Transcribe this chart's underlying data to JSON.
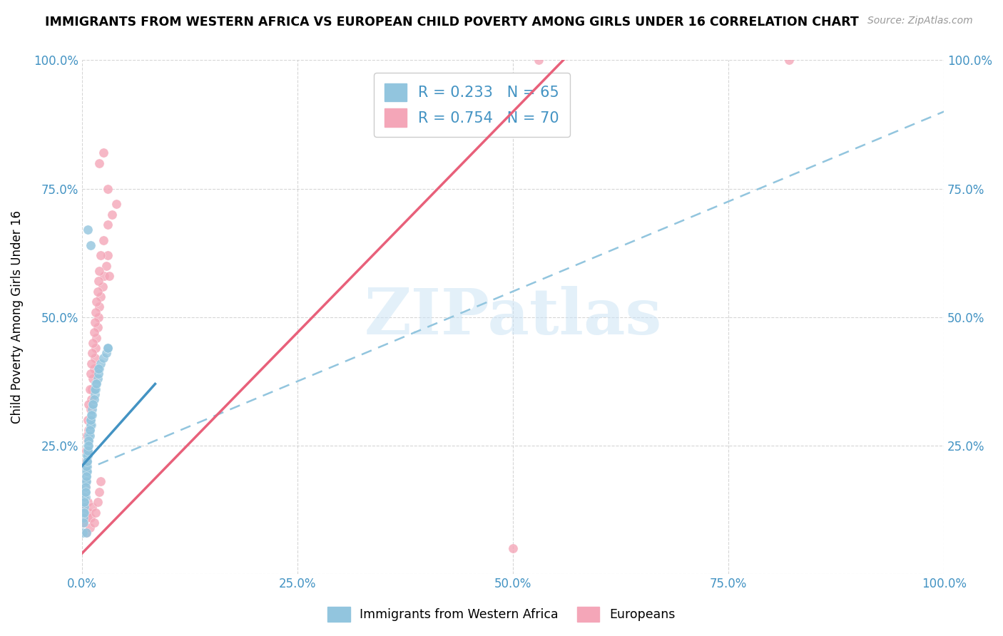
{
  "title": "IMMIGRANTS FROM WESTERN AFRICA VS EUROPEAN CHILD POVERTY AMONG GIRLS UNDER 16 CORRELATION CHART",
  "source": "Source: ZipAtlas.com",
  "ylabel": "Child Poverty Among Girls Under 16",
  "r_blue": 0.233,
  "n_blue": 65,
  "r_pink": 0.754,
  "n_pink": 70,
  "blue_color": "#92c5de",
  "pink_color": "#f4a6b8",
  "trend_blue_color": "#4393c3",
  "trend_pink_color": "#e8607a",
  "trend_dashed_color": "#92c5de",
  "text_color": "#4393c3",
  "watermark": "ZIPatlas",
  "xlim": [
    0,
    1
  ],
  "ylim": [
    0,
    1
  ],
  "xticks": [
    0,
    0.25,
    0.5,
    0.75,
    1.0
  ],
  "yticks": [
    0,
    0.25,
    0.5,
    0.75,
    1.0
  ],
  "xticklabels": [
    "0.0%",
    "25.0%",
    "50.0%",
    "75.0%",
    "100.0%"
  ],
  "yticklabels": [
    "",
    "25.0%",
    "50.0%",
    "75.0%",
    "100.0%"
  ],
  "blue_scatter": [
    [
      0.004,
      0.2
    ],
    [
      0.006,
      0.22
    ],
    [
      0.003,
      0.17
    ],
    [
      0.007,
      0.25
    ],
    [
      0.005,
      0.19
    ],
    [
      0.008,
      0.26
    ],
    [
      0.004,
      0.15
    ],
    [
      0.006,
      0.21
    ],
    [
      0.009,
      0.28
    ],
    [
      0.007,
      0.23
    ],
    [
      0.003,
      0.14
    ],
    [
      0.004,
      0.18
    ],
    [
      0.005,
      0.2
    ],
    [
      0.006,
      0.22
    ],
    [
      0.008,
      0.27
    ],
    [
      0.01,
      0.3
    ],
    [
      0.012,
      0.32
    ],
    [
      0.015,
      0.35
    ],
    [
      0.018,
      0.38
    ],
    [
      0.02,
      0.4
    ],
    [
      0.022,
      0.41
    ],
    [
      0.025,
      0.42
    ],
    [
      0.028,
      0.43
    ],
    [
      0.03,
      0.44
    ],
    [
      0.003,
      0.13
    ],
    [
      0.004,
      0.16
    ],
    [
      0.005,
      0.18
    ],
    [
      0.006,
      0.2
    ],
    [
      0.007,
      0.24
    ],
    [
      0.009,
      0.27
    ],
    [
      0.011,
      0.29
    ],
    [
      0.013,
      0.33
    ],
    [
      0.016,
      0.36
    ],
    [
      0.019,
      0.39
    ],
    [
      0.002,
      0.12
    ],
    [
      0.003,
      0.15
    ],
    [
      0.004,
      0.17
    ],
    [
      0.005,
      0.21
    ],
    [
      0.006,
      0.23
    ],
    [
      0.008,
      0.26
    ],
    [
      0.01,
      0.29
    ],
    [
      0.012,
      0.31
    ],
    [
      0.014,
      0.34
    ],
    [
      0.016,
      0.37
    ],
    [
      0.002,
      0.11
    ],
    [
      0.003,
      0.14
    ],
    [
      0.004,
      0.16
    ],
    [
      0.005,
      0.19
    ],
    [
      0.006,
      0.22
    ],
    [
      0.007,
      0.24
    ],
    [
      0.008,
      0.25
    ],
    [
      0.009,
      0.28
    ],
    [
      0.01,
      0.3
    ],
    [
      0.011,
      0.31
    ],
    [
      0.013,
      0.33
    ],
    [
      0.015,
      0.36
    ],
    [
      0.017,
      0.37
    ],
    [
      0.019,
      0.4
    ],
    [
      0.001,
      0.08
    ],
    [
      0.002,
      0.1
    ],
    [
      0.003,
      0.12
    ],
    [
      0.03,
      0.44
    ],
    [
      0.007,
      0.67
    ],
    [
      0.01,
      0.64
    ],
    [
      0.005,
      0.08
    ]
  ],
  "pink_scatter": [
    [
      0.003,
      0.2
    ],
    [
      0.004,
      0.18
    ],
    [
      0.005,
      0.22
    ],
    [
      0.006,
      0.24
    ],
    [
      0.007,
      0.26
    ],
    [
      0.008,
      0.28
    ],
    [
      0.009,
      0.3
    ],
    [
      0.01,
      0.32
    ],
    [
      0.011,
      0.34
    ],
    [
      0.012,
      0.36
    ],
    [
      0.013,
      0.38
    ],
    [
      0.014,
      0.4
    ],
    [
      0.015,
      0.42
    ],
    [
      0.016,
      0.44
    ],
    [
      0.017,
      0.46
    ],
    [
      0.018,
      0.48
    ],
    [
      0.019,
      0.5
    ],
    [
      0.02,
      0.52
    ],
    [
      0.022,
      0.54
    ],
    [
      0.024,
      0.56
    ],
    [
      0.026,
      0.58
    ],
    [
      0.028,
      0.6
    ],
    [
      0.03,
      0.62
    ],
    [
      0.032,
      0.58
    ],
    [
      0.002,
      0.16
    ],
    [
      0.003,
      0.18
    ],
    [
      0.004,
      0.21
    ],
    [
      0.005,
      0.24
    ],
    [
      0.006,
      0.27
    ],
    [
      0.007,
      0.3
    ],
    [
      0.008,
      0.33
    ],
    [
      0.009,
      0.36
    ],
    [
      0.01,
      0.39
    ],
    [
      0.011,
      0.41
    ],
    [
      0.012,
      0.43
    ],
    [
      0.013,
      0.45
    ],
    [
      0.014,
      0.47
    ],
    [
      0.015,
      0.49
    ],
    [
      0.016,
      0.51
    ],
    [
      0.017,
      0.53
    ],
    [
      0.018,
      0.55
    ],
    [
      0.019,
      0.57
    ],
    [
      0.02,
      0.59
    ],
    [
      0.022,
      0.62
    ],
    [
      0.001,
      0.1
    ],
    [
      0.002,
      0.13
    ],
    [
      0.003,
      0.15
    ],
    [
      0.004,
      0.17
    ],
    [
      0.005,
      0.08
    ],
    [
      0.006,
      0.11
    ],
    [
      0.007,
      0.14
    ],
    [
      0.008,
      0.12
    ],
    [
      0.009,
      0.09
    ],
    [
      0.01,
      0.11
    ],
    [
      0.012,
      0.13
    ],
    [
      0.014,
      0.1
    ],
    [
      0.016,
      0.12
    ],
    [
      0.018,
      0.14
    ],
    [
      0.02,
      0.16
    ],
    [
      0.022,
      0.18
    ],
    [
      0.025,
      0.65
    ],
    [
      0.03,
      0.68
    ],
    [
      0.035,
      0.7
    ],
    [
      0.04,
      0.72
    ],
    [
      0.02,
      0.8
    ],
    [
      0.025,
      0.82
    ],
    [
      0.03,
      0.75
    ],
    [
      0.5,
      0.05
    ],
    [
      0.82,
      1.0
    ],
    [
      0.53,
      1.0
    ]
  ],
  "pink_line_x": [
    0.0,
    0.57
  ],
  "pink_line_y": [
    0.04,
    1.02
  ],
  "blue_solid_line_x": [
    0.0,
    0.085
  ],
  "blue_solid_line_y": [
    0.21,
    0.37
  ],
  "blue_dashed_line_x": [
    0.0,
    1.0
  ],
  "blue_dashed_line_y": [
    0.2,
    0.9
  ]
}
